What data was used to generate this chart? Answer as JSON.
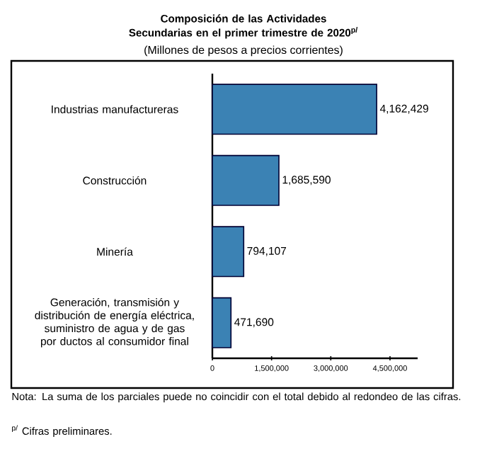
{
  "chart_data": {
    "type": "bar",
    "orientation": "horizontal",
    "title": "Composición de las Actividades Secundarias en el primer trimestre de 2020$^{p/}$",
    "subtitle": "(Millones de pesos a precios corrientes)",
    "categories": [
      "Industrias manufactureras",
      "Construcción",
      "Minería",
      "Generación, transmisión y distribución de energía eléctrica, suministro de agua y de gas por ductos al consumidor final"
    ],
    "values": [
      4162429,
      1685590,
      794107,
      471690
    ],
    "value_labels": [
      "4,162,429",
      "1,685,590",
      "794,107",
      "471,690"
    ],
    "color": "#3b82b4",
    "xlim": [
      0,
      5200000
    ],
    "xticks": [
      0,
      {
        "value": 1500000,
        "label": "1,500,000"
      },
      {
        "value": 3000000,
        "label": "3,000,000"
      },
      {
        "value": 4500000,
        "label": "4,500,000"
      }
    ],
    "annotations": [
      "Nota: La suma de los parciales puede no coincidir con el total debido al redondeo de las cifras.",
      "$^{p/}$ Cifras preliminares."
    ]
  }
}
